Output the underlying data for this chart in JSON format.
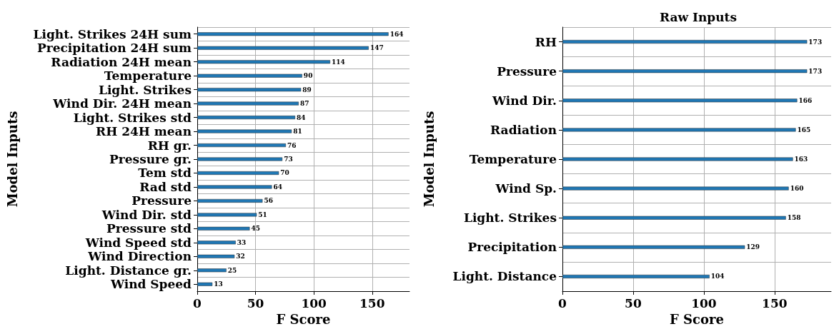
{
  "chart_data": [
    {
      "type": "bar",
      "orientation": "horizontal",
      "xlabel": "F Score",
      "ylabel": "Model Inputs",
      "categories": [
        "Light. Strikes 24H sum",
        "Precipitation 24H sum",
        "Radiation 24H mean",
        "Temperature",
        "Light. Strikes",
        "Wind Dir. 24H mean",
        "Light. Strikes std",
        "RH 24H mean",
        "RH gr.",
        "Pressure gr.",
        "Tem std",
        "Rad std",
        "Pressure",
        "Wind Dir. std",
        "Pressure std",
        "Wind Speed std",
        "Wind Direction",
        "Light. Distance gr.",
        "Wind Speed"
      ],
      "values": [
        164,
        147,
        114,
        90,
        89,
        87,
        84,
        81,
        76,
        73,
        70,
        64,
        56,
        51,
        45,
        33,
        32,
        25,
        13
      ],
      "color": "#1f77b4",
      "data_labels": true,
      "xlim": [
        0,
        182
      ],
      "xticks": [
        0,
        50,
        100,
        150
      ],
      "grid": true
    },
    {
      "type": "bar",
      "orientation": "horizontal",
      "title": "Raw Inputs",
      "xlabel": "F Score",
      "ylabel": "Model Inputs",
      "categories": [
        "RH",
        "Pressure",
        "Wind Dir.",
        "Radiation",
        "Temperature",
        "Wind Sp.",
        "Light. Strikes",
        "Precipitation",
        "Light. Distance"
      ],
      "values": [
        173,
        173,
        166,
        165,
        163,
        160,
        158,
        129,
        104
      ],
      "color": "#1f77b4",
      "data_labels": true,
      "xlim": [
        0,
        190
      ],
      "xticks": [
        0,
        50,
        100,
        150
      ],
      "grid": true
    }
  ]
}
